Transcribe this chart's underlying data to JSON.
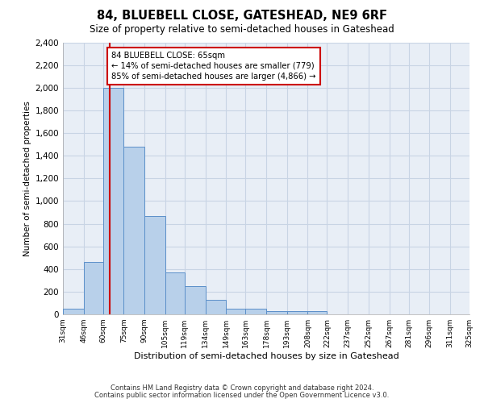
{
  "title": "84, BLUEBELL CLOSE, GATESHEAD, NE9 6RF",
  "subtitle": "Size of property relative to semi-detached houses in Gateshead",
  "xlabel": "Distribution of semi-detached houses by size in Gateshead",
  "ylabel": "Number of semi-detached properties",
  "property_size": 65,
  "property_label": "84 BLUEBELL CLOSE: 65sqm",
  "annotation_smaller": "← 14% of semi-detached houses are smaller (779)",
  "annotation_larger": "85% of semi-detached houses are larger (4,866) →",
  "bins": [
    31,
    46,
    60,
    75,
    90,
    105,
    119,
    134,
    149,
    163,
    178,
    193,
    208,
    222,
    237,
    252,
    267,
    281,
    296,
    311,
    325
  ],
  "bin_labels": [
    "31sqm",
    "46sqm",
    "60sqm",
    "75sqm",
    "90sqm",
    "105sqm",
    "119sqm",
    "134sqm",
    "149sqm",
    "163sqm",
    "178sqm",
    "193sqm",
    "208sqm",
    "222sqm",
    "237sqm",
    "252sqm",
    "267sqm",
    "281sqm",
    "296sqm",
    "311sqm",
    "325sqm"
  ],
  "counts": [
    50,
    460,
    2000,
    1480,
    870,
    370,
    250,
    130,
    50,
    50,
    25,
    25,
    25,
    0,
    0,
    0,
    0,
    0,
    0,
    0
  ],
  "bar_color": "#b8d0ea",
  "bar_edge_color": "#5b8fc9",
  "redline_color": "#cc0000",
  "annotation_box_color": "#cc0000",
  "grid_color": "#c8d4e4",
  "background_color": "#e8eef6",
  "footer1": "Contains HM Land Registry data © Crown copyright and database right 2024.",
  "footer2": "Contains public sector information licensed under the Open Government Licence v3.0.",
  "ylim": [
    0,
    2400
  ],
  "yticks": [
    0,
    200,
    400,
    600,
    800,
    1000,
    1200,
    1400,
    1600,
    1800,
    2000,
    2200,
    2400
  ]
}
